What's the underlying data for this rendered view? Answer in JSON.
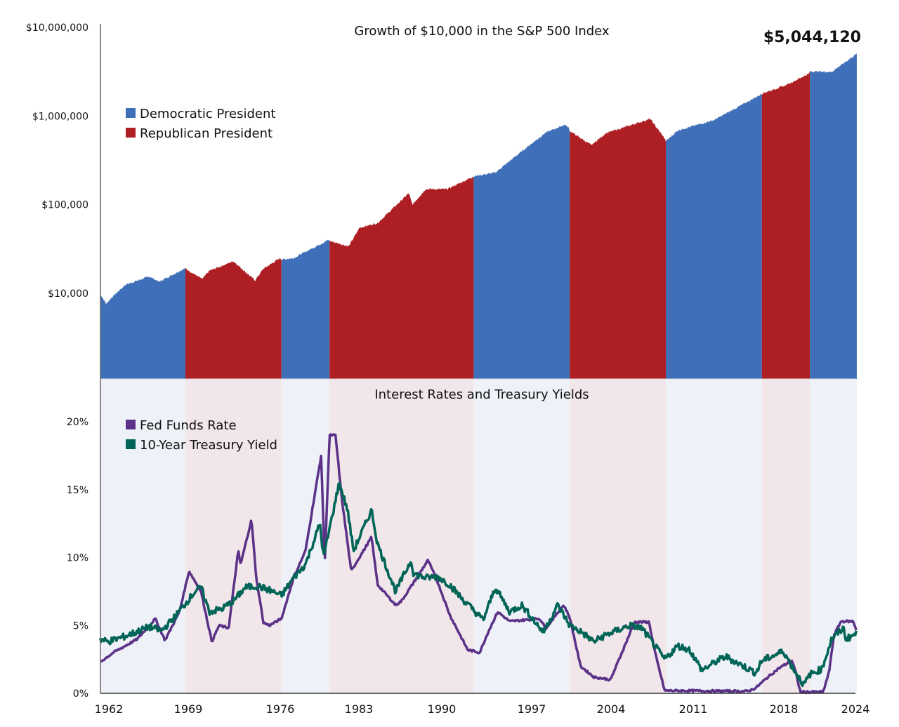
{
  "chart_data": [
    {
      "type": "area",
      "title": "Growth of $10,000 in the S&P 500 Index",
      "annotation": "$5,044,120",
      "yscale": "log",
      "ylim": [
        1000,
        10000000
      ],
      "yticks": [
        "$10,000",
        "$100,000",
        "$1,000,000",
        "$10,000,000"
      ],
      "ytick_values": [
        10000,
        100000,
        1000000,
        10000000
      ],
      "legend": [
        {
          "label": "Democratic President",
          "color": "#3f6fb8"
        },
        {
          "label": "Republican President",
          "color": "#ae1f24"
        }
      ],
      "legend_placement": "top-left",
      "terms": [
        {
          "party": "D",
          "start": 1961.9,
          "end": 1969
        },
        {
          "party": "R",
          "start": 1969,
          "end": 1977
        },
        {
          "party": "D",
          "start": 1977,
          "end": 1981
        },
        {
          "party": "R",
          "start": 1981,
          "end": 1993
        },
        {
          "party": "D",
          "start": 1993,
          "end": 2001
        },
        {
          "party": "R",
          "start": 2001,
          "end": 2009
        },
        {
          "party": "D",
          "start": 2009,
          "end": 2017
        },
        {
          "party": "R",
          "start": 2017,
          "end": 2021
        },
        {
          "party": "D",
          "start": 2021,
          "end": 2024.9
        }
      ],
      "x": [
        1961.9,
        1962.4,
        1962.8,
        1964,
        1966,
        1966.8,
        1968.9,
        1969,
        1970.4,
        1971,
        1973,
        1974.8,
        1975.5,
        1976.9,
        1977,
        1978,
        1980.9,
        1981,
        1982.6,
        1983.5,
        1985,
        1987.6,
        1987.9,
        1989,
        1990.8,
        1992.9,
        1993,
        1994.8,
        1997,
        1999,
        2000.6,
        2000.9,
        2001,
        2002.8,
        2004,
        2007.7,
        2008.9,
        2009,
        2010,
        2013,
        2016,
        2016.9,
        2017,
        2018.9,
        2020.9,
        2021,
        2022.8,
        2024.9
      ],
      "values": [
        10000,
        7600,
        8800,
        12500,
        15500,
        13500,
        19000,
        19000,
        14500,
        18000,
        23000,
        14000,
        19000,
        25000,
        24000,
        25000,
        40000,
        39000,
        34000,
        55000,
        62000,
        135000,
        100000,
        150000,
        150000,
        205000,
        210000,
        230000,
        400000,
        650000,
        800000,
        740000,
        680000,
        470000,
        640000,
        930000,
        560000,
        520000,
        690000,
        900000,
        1500000,
        1750000,
        1800000,
        2200000,
        3000000,
        3200000,
        3150000,
        5044120
      ]
    },
    {
      "type": "line",
      "title": "Interest Rates and Treasury Yields",
      "ylim": [
        0,
        20
      ],
      "yticks": [
        "0%",
        "5%",
        "10%",
        "15%",
        "20%"
      ],
      "ytick_values": [
        0,
        5,
        10,
        15,
        20
      ],
      "xticks": [
        "1962",
        "1969",
        "1976",
        "1983",
        "1990",
        "1997",
        "2004",
        "2011",
        "2018",
        "2024"
      ],
      "xtick_values": [
        1962,
        1969,
        1976,
        1983,
        1990,
        1997,
        2004,
        2011,
        2018,
        2024
      ],
      "legend_placement": "top-left",
      "series": [
        {
          "name": "Fed Funds Rate",
          "color": "#5b3288",
          "x": [
            1961.9,
            1963,
            1964,
            1965,
            1966.5,
            1967.3,
            1968.5,
            1969.3,
            1970.3,
            1971.2,
            1971.8,
            1972.6,
            1973.4,
            1973.6,
            1974.5,
            1974.9,
            1975.5,
            1976,
            1977,
            1978,
            1979,
            1980.3,
            1980.6,
            1981,
            1981.5,
            1982,
            1982.8,
            1984.5,
            1985,
            1986.5,
            1987,
            1989.2,
            1990,
            1991,
            1992.5,
            1993.5,
            1994.2,
            1995,
            1996,
            1998.5,
            1999,
            2000.5,
            2001,
            2001.9,
            2003,
            2004.4,
            2006.4,
            2007.6,
            2008.1,
            2008.9,
            2015.8,
            2016.5,
            2017.5,
            2018.5,
            2019.5,
            2019.8,
            2020.2,
            2022.1,
            2022.6,
            2023,
            2023.6,
            2024.6,
            2024.9
          ],
          "values": [
            2.3,
            3.0,
            3.5,
            4.0,
            5.5,
            3.9,
            6.0,
            9.0,
            7.5,
            3.8,
            5.0,
            4.8,
            10.5,
            9.5,
            12.8,
            8.5,
            5.2,
            5.0,
            5.5,
            8.5,
            10.5,
            17.5,
            9.5,
            19.0,
            19.0,
            14.5,
            9.0,
            11.5,
            8.0,
            6.5,
            6.8,
            9.8,
            8.2,
            5.8,
            3.2,
            3.0,
            4.5,
            6.0,
            5.3,
            5.5,
            4.8,
            6.5,
            5.6,
            2.0,
            1.2,
            1.0,
            5.25,
            5.25,
            3.0,
            0.2,
            0.15,
            0.4,
            1.2,
            1.9,
            2.4,
            1.6,
            0.1,
            0.1,
            1.6,
            4.3,
            5.3,
            5.3,
            4.6
          ]
        },
        {
          "name": "10-Year Treasury Yield",
          "color": "#006456",
          "x": [
            1961.9,
            1962.5,
            1964,
            1966,
            1967,
            1968,
            1969.8,
            1970.3,
            1971,
            1972,
            1973,
            1974,
            1975,
            1976,
            1977,
            1978,
            1979,
            1980.2,
            1980.5,
            1981.8,
            1982.5,
            1983,
            1984.5,
            1985,
            1986.5,
            1987.8,
            1988,
            1989,
            1990,
            1991,
            1992,
            1993.8,
            1994.8,
            1996,
            1997,
            1998.8,
            2000,
            2001,
            2002,
            2003,
            2004,
            2006,
            2007,
            2008.9,
            2010,
            2011,
            2012,
            2013.5,
            2014,
            2016.5,
            2017,
            2018.8,
            2019.5,
            2020.5,
            2021,
            2022,
            2022.8,
            2023.8,
            2024,
            2024.9
          ],
          "values": [
            4.0,
            3.8,
            4.2,
            4.9,
            4.6,
            5.5,
            7.5,
            7.8,
            6.0,
            6.2,
            6.8,
            7.8,
            7.9,
            7.6,
            7.2,
            8.5,
            9.5,
            12.5,
            10.0,
            15.5,
            13.5,
            10.5,
            13.5,
            11.0,
            7.5,
            9.8,
            8.8,
            8.5,
            8.6,
            8.0,
            7.0,
            5.4,
            7.8,
            6.0,
            6.5,
            4.5,
            6.5,
            5.0,
            4.5,
            3.8,
            4.3,
            5.0,
            4.8,
            2.5,
            3.5,
            3.2,
            1.7,
            2.5,
            2.7,
            1.5,
            2.4,
            3.1,
            2.0,
            0.6,
            1.4,
            1.8,
            4.0,
            4.8,
            4.0,
            4.4
          ]
        }
      ],
      "shading_colors": {
        "D": "#eef2f8",
        "R": "#f1e6ea"
      }
    }
  ]
}
